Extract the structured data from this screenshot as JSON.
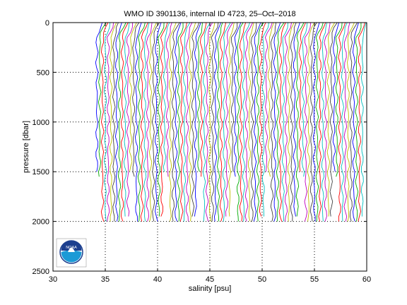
{
  "chart_data": {
    "type": "line",
    "title": "WMO ID 3901136, internal ID 4723, 25–Oct–2018",
    "xlabel": "salinity [psu]",
    "ylabel": "pressure [dbar]",
    "xlim": [
      30,
      60
    ],
    "ylim": [
      0,
      2500
    ],
    "y_reversed": true,
    "x_ticks": [
      "30",
      "35",
      "40",
      "45",
      "50",
      "55",
      "60"
    ],
    "y_ticks": [
      "0",
      "500",
      "1000",
      "1500",
      "2000",
      "2500"
    ],
    "grid": "dotted",
    "legend": "none",
    "profile_count": 95,
    "profile_x_start": 34.2,
    "profile_x_step": 0.27,
    "profile_max_pressure": [
      1500,
      1550,
      2030,
      2030,
      2000,
      2020,
      2030,
      2030,
      2000,
      2010,
      1950,
      1980
    ],
    "series_colors": [
      "#0000ff",
      "#00aa00",
      "#ff0000",
      "#00bfbf",
      "#bf00bf",
      "#bfbf00",
      "#404040"
    ],
    "logo_text": "NOAA"
  }
}
